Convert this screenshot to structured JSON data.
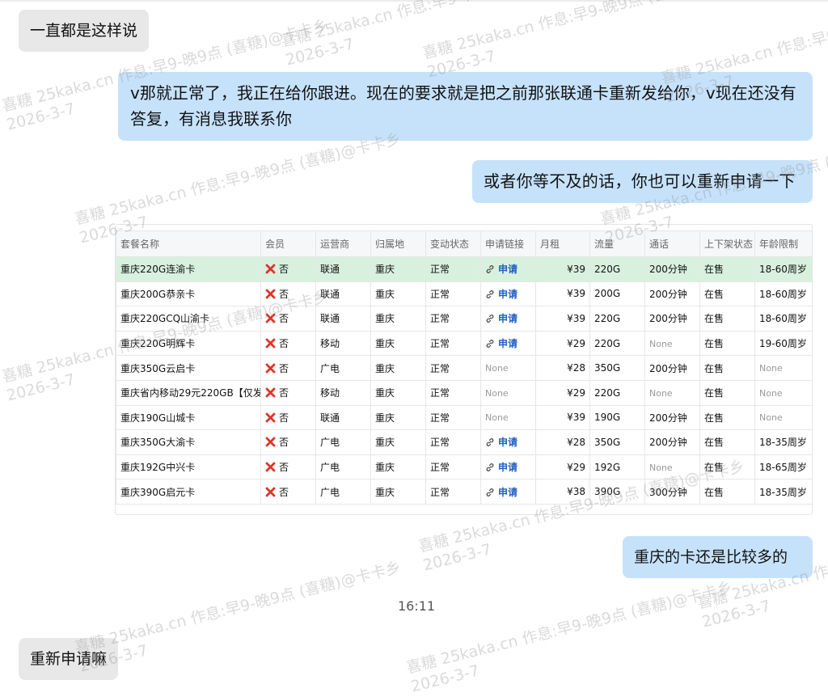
{
  "messages": [
    {
      "side": "left",
      "text": "一直都是这样说"
    },
    {
      "side": "right",
      "text": "v那就正常了，我正在给你跟进。现在的要求就是把之前那张联通卡重新发给你，v现在还没有答复，有消息我联系你"
    },
    {
      "side": "right",
      "text": "或者你等不及的话，你也可以重新申请一下"
    },
    {
      "side": "right",
      "text": "重庆的卡还是比较多的"
    },
    {
      "side": "left",
      "text": "重新申请嘛"
    }
  ],
  "time": "16:11",
  "watermark": {
    "line1": "喜糖 25kaka.cn 作息:早9-晚9点 (喜糖)@卡卡乡",
    "line2": "2026-3-7"
  },
  "table": {
    "headers": [
      "套餐名称",
      "会员",
      "运营商",
      "归属地",
      "变动状态",
      "申请链接",
      "月租",
      "流量",
      "通话",
      "上下架状态",
      "年龄限制"
    ],
    "rows": [
      [
        "重庆220G连渝卡",
        "否",
        "联通",
        "重庆",
        "正常",
        "申请",
        "¥39",
        "220G",
        "200分钟",
        "在售",
        "18-60周岁"
      ],
      [
        "重庆200G恭亲卡",
        "否",
        "联通",
        "重庆",
        "正常",
        "申请",
        "¥39",
        "200G",
        "200分钟",
        "在售",
        "18-60周岁"
      ],
      [
        "重庆220GCQ山渝卡",
        "否",
        "联通",
        "重庆",
        "正常",
        "申请",
        "¥39",
        "220G",
        "200分钟",
        "在售",
        "18-60周岁"
      ],
      [
        "重庆220G明辉卡",
        "否",
        "移动",
        "重庆",
        "正常",
        "申请",
        "¥29",
        "220G",
        "None",
        "在售",
        "19-60周岁"
      ],
      [
        "重庆350G云启卡",
        "否",
        "广电",
        "重庆",
        "正常",
        "None",
        "¥28",
        "350G",
        "200分钟",
        "在售",
        "None"
      ],
      [
        "重庆省内移动29元220GB【仅发",
        "否",
        "移动",
        "重庆",
        "正常",
        "None",
        "¥29",
        "220G",
        "None",
        "在售",
        "None"
      ],
      [
        "重庆190G山城卡",
        "否",
        "联通",
        "重庆",
        "正常",
        "None",
        "¥39",
        "190G",
        "200分钟",
        "在售",
        "None"
      ],
      [
        "重庆350G大渝卡",
        "否",
        "广电",
        "重庆",
        "正常",
        "申请",
        "¥28",
        "350G",
        "200分钟",
        "在售",
        "18-35周岁"
      ],
      [
        "重庆192G中兴卡",
        "否",
        "广电",
        "重庆",
        "正常",
        "申请",
        "¥29",
        "192G",
        "None",
        "在售",
        "18-65周岁"
      ],
      [
        "重庆390G启元卡",
        "否",
        "广电",
        "重庆",
        "正常",
        "申请",
        "¥38",
        "390G",
        "300分钟",
        "在售",
        "18-35周岁"
      ]
    ]
  }
}
